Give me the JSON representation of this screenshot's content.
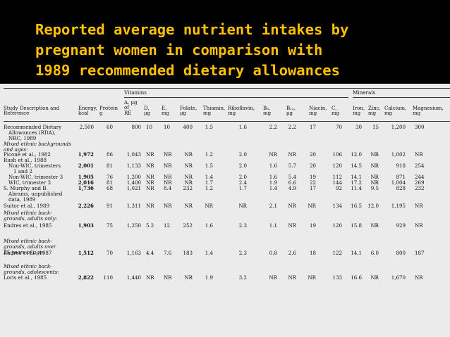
{
  "title_lines": [
    "Reported average nutrient intakes by",
    "pregnant women in comparison with",
    "1989 recommended dietary allowances"
  ],
  "table": {
    "group_headers": {
      "vitamins": "Vitamins",
      "minerals": "Minerals"
    },
    "headers": [
      [
        "Study Description and",
        "Reference"
      ],
      [
        "Energy,",
        "kcal"
      ],
      [
        "Protein",
        "g"
      ],
      [
        "A, μg",
        "of",
        "RE"
      ],
      [
        "D,",
        "μg"
      ],
      [
        "E,",
        "mg"
      ],
      [
        "Folate,",
        "μg"
      ],
      [
        "Thiamin,",
        "mg"
      ],
      [
        "Riboflavin,",
        "mg"
      ],
      [
        "B₆,",
        "mg"
      ],
      [
        "B₁₂,",
        "μg"
      ],
      [
        "Niacin,",
        "mg"
      ],
      [
        "C,",
        "mg"
      ],
      [
        "Iron,",
        "mg"
      ],
      [
        "Zinc,",
        "mg"
      ],
      [
        "Calcium,",
        "mg"
      ],
      [
        "Magnesium,",
        "mg"
      ]
    ],
    "rows": [
      {
        "label": [
          "Recommended Dietary",
          "Allowances (RDA),",
          "NRC, 1989"
        ],
        "values": [
          "2,500",
          "60",
          "800",
          "10",
          "10",
          "400",
          "1.5",
          "1.6",
          "2.2",
          "2.2",
          "17",
          "70",
          "30",
          "15",
          "1,200",
          "300"
        ]
      },
      {
        "label": [
          "Mixed ethnic backgrounds",
          "and ages:"
        ],
        "italic": true
      },
      {
        "label": [
          "Picone et al., 1982"
        ],
        "values": [
          "1,972",
          "86",
          "1,043",
          "NR",
          "NR",
          "NR",
          "1.2",
          "2.0",
          "NR",
          "NR",
          "20",
          "106",
          "12.0",
          "NR",
          "1,002",
          "NR"
        ]
      },
      {
        "label": [
          "Rush et al., 1988"
        ]
      },
      {
        "label": [
          "Non-WIC, trimesters",
          "1 and 2"
        ],
        "values": [
          "2,001",
          "81",
          "1,133",
          "NR",
          "NR",
          "NR",
          "1.5",
          "2.0",
          "1.6",
          "5.7",
          "20",
          "120",
          "14.5",
          "NR",
          "918",
          "254"
        ]
      },
      {
        "label": [
          "Non-WIC, trimester 3"
        ],
        "values": [
          "1,905",
          "76",
          "1,200",
          "NR",
          "NR",
          "NR",
          "1.4",
          "2.0",
          "1.6",
          "5.4",
          "19",
          "112",
          "14.1",
          "NR",
          "871",
          "244"
        ]
      },
      {
        "label": [
          "WIC, trimester 3"
        ],
        "values": [
          "2,016",
          "81",
          "1,400",
          "NR",
          "NR",
          "NR",
          "1.7",
          "2.4",
          "1.9",
          "6.6",
          "22",
          "144",
          "17.2",
          "NR",
          "1,004",
          "269"
        ]
      },
      {
        "label": [
          "S. Murphy and B.",
          "Abrams, unpublished",
          "data, 1989"
        ],
        "values": [
          "1,736",
          "68",
          "1,021",
          "NR",
          "8.4",
          "232",
          "1.2",
          "1.7",
          "1.4",
          "4.9",
          "17",
          "92",
          "11.4",
          "9.5",
          "828",
          "232"
        ]
      },
      {
        "label": [
          "Suitor et al., 1989"
        ],
        "values": [
          "2,226",
          "91",
          "1,311",
          "NR",
          "NR",
          "NR",
          "NR",
          "NR",
          "2.1",
          "NR",
          "NR",
          "134",
          "16.5",
          "12.0",
          "1,195",
          "NR"
        ]
      },
      {
        "label": [
          "Mixed ethnic back-",
          "grounds, adults only:"
        ],
        "italic": true
      },
      {
        "label": [
          "Endres et al., 1985"
        ],
        "values": [
          "1,903",
          "75",
          "1,250",
          "5.2",
          "12",
          "252",
          "1.6",
          "2.3",
          "1.1",
          "NR",
          "19",
          "120",
          "15.8",
          "NR",
          "929",
          "NR"
        ]
      },
      {
        "label": [
          "Mixed ethnic back-",
          "grounds, adults over",
          "35 years of age:"
        ],
        "italic": true
      },
      {
        "label": [
          "Endres et al., 1987"
        ],
        "values": [
          "1,512",
          "70",
          "1,163",
          "4.4",
          "7.6",
          "183",
          "1.4",
          "2.3",
          "0.8",
          "2.6",
          "18",
          "122",
          "14.1",
          "6.0",
          "800",
          "187"
        ]
      },
      {
        "label": [
          "Mixed ethnic back-",
          "grounds, adolescents:"
        ],
        "italic": true
      },
      {
        "label": [
          "Loris et al., 1985"
        ],
        "values": [
          "2,822",
          "110",
          "1,440",
          "NR",
          "NR",
          "NR",
          "1.9",
          "3.2",
          "NR",
          "NR",
          "NR",
          "133",
          "16.6",
          "NR",
          "1,670",
          "NR"
        ]
      }
    ]
  }
}
